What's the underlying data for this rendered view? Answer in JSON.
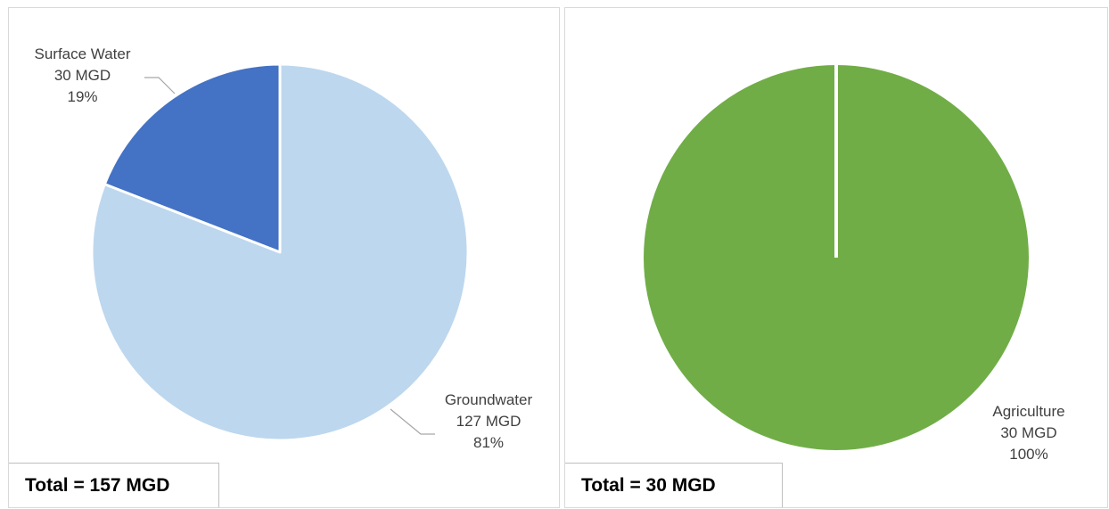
{
  "chart_data": [
    {
      "type": "pie",
      "unit": "MGD",
      "slices": [
        {
          "name": "Surface Water",
          "value": 30,
          "value_label": "30  MGD",
          "percent_label": "19%",
          "color": "#4472c4"
        },
        {
          "name": "Groundwater",
          "value": 127,
          "value_label": "127  MGD",
          "percent_label": "81%",
          "color": "#bdd7ee"
        }
      ],
      "total_label": "Total = 157 MGD"
    },
    {
      "type": "pie",
      "unit": "MGD",
      "slices": [
        {
          "name": "Agriculture",
          "value": 30,
          "value_label": "30 MGD",
          "percent_label": "100%",
          "color": "#70ad47"
        }
      ],
      "total_label": "Total = 30 MGD"
    }
  ]
}
